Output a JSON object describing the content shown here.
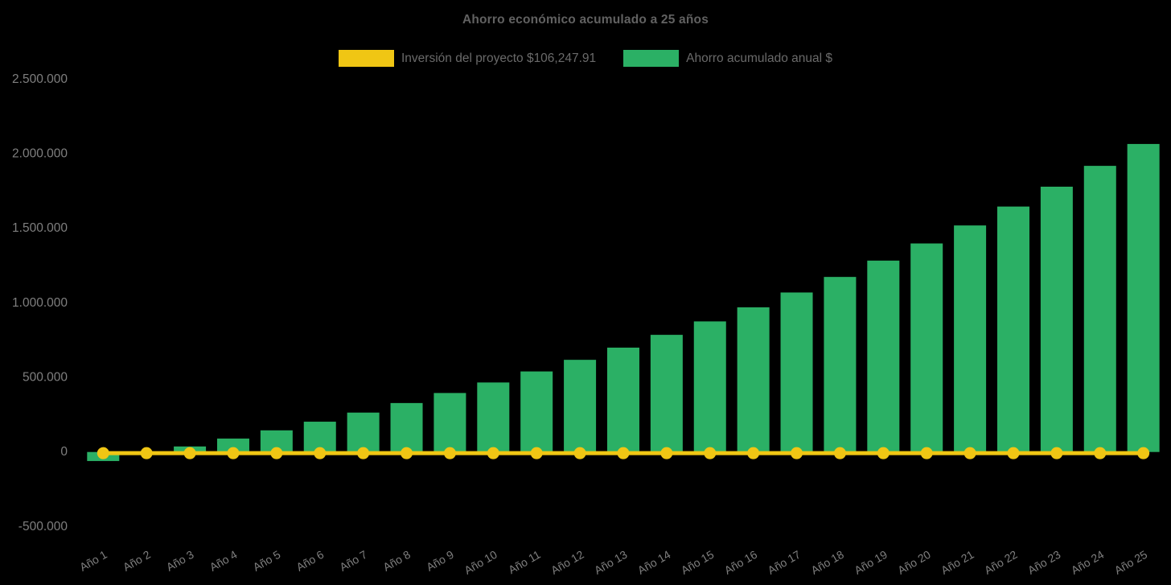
{
  "page": {
    "background_color": "#000000"
  },
  "title": {
    "text": "Ahorro económico acumulado a 25 años",
    "color": "#616161"
  },
  "legend": {
    "position": "top",
    "investment": {
      "label": "Inversión del proyecto $106,247.91",
      "color": "#F0C614"
    },
    "savings": {
      "label": "Ahorro acumulado anual $",
      "color": "#2BB065"
    }
  },
  "chart_data": {
    "type": "bar",
    "title": "Ahorro económico acumulado a 25 años",
    "xlabel": "",
    "ylabel": "",
    "grid": false,
    "legend_position": "top",
    "background_color": "#000000",
    "categories": [
      "Año 1",
      "Año 2",
      "Año 3",
      "Año 4",
      "Año 5",
      "Año 6",
      "Año 7",
      "Año 8",
      "Año 9",
      "Año 10",
      "Año 11",
      "Año 12",
      "Año 13",
      "Año 14",
      "Año 15",
      "Año 16",
      "Año 17",
      "Año 18",
      "Año 19",
      "Año 20",
      "Año 21",
      "Año 22",
      "Año 23",
      "Año 24",
      "Año 25"
    ],
    "series": [
      {
        "name": "Ahorro acumulado anual $",
        "type": "bar",
        "color": "#2BB065",
        "values": [
          -60700,
          -13000,
          37100,
          89900,
          145200,
          203200,
          264200,
          328200,
          395500,
          466000,
          540100,
          618000,
          699700,
          785500,
          875600,
          970200,
          1069500,
          1173800,
          1283300,
          1398300,
          1519000,
          1645800,
          1778900,
          1918600,
          2065300
        ]
      },
      {
        "name": "Inversión del proyecto $106,247.91",
        "type": "line",
        "color": "#F0C614",
        "marker": "circle",
        "constant_value": -8000,
        "values": [
          -8000,
          -8000,
          -8000,
          -8000,
          -8000,
          -8000,
          -8000,
          -8000,
          -8000,
          -8000,
          -8000,
          -8000,
          -8000,
          -8000,
          -8000,
          -8000,
          -8000,
          -8000,
          -8000,
          -8000,
          -8000,
          -8000,
          -8000,
          -8000,
          -8000
        ]
      }
    ],
    "y_axis": {
      "range": [
        -500000,
        2500000
      ],
      "tick_interval": 500000,
      "ticks": [
        {
          "value": 2500000,
          "label": "2.500.000"
        },
        {
          "value": 2000000,
          "label": "2.000.000"
        },
        {
          "value": 1500000,
          "label": "1.500.000"
        },
        {
          "value": 1000000,
          "label": "1.000.000"
        },
        {
          "value": 500000,
          "label": "500.000"
        },
        {
          "value": 0,
          "label": "0"
        },
        {
          "value": -500000,
          "label": "-500.000"
        }
      ],
      "label_color": "#7F7F7F"
    },
    "x_axis": {
      "label_rotation_deg": -30,
      "label_color": "#7F7F7F"
    }
  }
}
